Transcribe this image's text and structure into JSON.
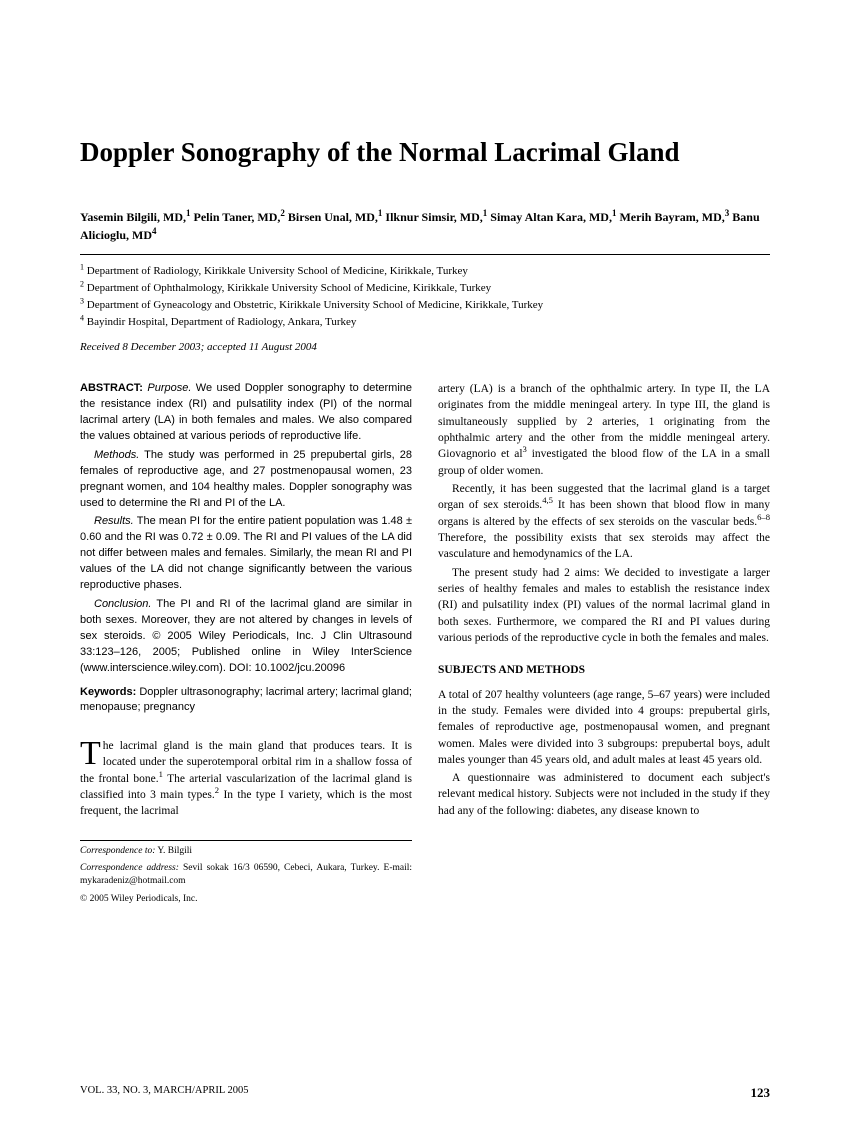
{
  "title": "Doppler Sonography of the Normal Lacrimal Gland",
  "authors_html": "Yasemin Bilgili, MD,<sup>1</sup> Pelin Taner, MD,<sup>2</sup> Birsen Unal, MD,<sup>1</sup> Ilknur Simsir, MD,<sup>1</sup> Simay Altan Kara, MD,<sup>1</sup> Merih Bayram, MD,<sup>3</sup> Banu Alicioglu, MD<sup>4</sup>",
  "affiliations": [
    "<sup>1</sup> Department of Radiology, Kirikkale University School of Medicine, Kirikkale, Turkey",
    "<sup>2</sup> Department of Ophthalmology, Kirikkale University School of Medicine, Kirikkale, Turkey",
    "<sup>3</sup> Department of Gyneacology and Obstetric, Kirikkale University School of Medicine, Kirikkale, Turkey",
    "<sup>4</sup> Bayindir Hospital, Department of Radiology, Ankara, Turkey"
  ],
  "received": "Received 8 December 2003; accepted 11 August 2004",
  "abstract": {
    "label": "ABSTRACT:",
    "purpose_label": "Purpose.",
    "purpose": "We used Doppler sonography to determine the resistance index (RI) and pulsatility index (PI) of the normal lacrimal artery (LA) in both females and males. We also compared the values obtained at various periods of reproductive life.",
    "methods_label": "Methods.",
    "methods": "The study was performed in 25 prepubertal girls, 28 females of reproductive age, and 27 postmenopausal women, 23 pregnant women, and 104 healthy males. Doppler sonography was used to determine the RI and PI of the LA.",
    "results_label": "Results.",
    "results": "The mean PI for the entire patient population was 1.48 ± 0.60 and the RI was 0.72 ± 0.09. The RI and PI values of the LA did not differ between males and females. Similarly, the mean RI and PI values of the LA did not change significantly between the various reproductive phases.",
    "conclusion_label": "Conclusion.",
    "conclusion": "The PI and RI of the lacrimal gland are similar in both sexes. Moreover, they are not altered by changes in levels of sex steroids. © 2005 Wiley Periodicals, Inc. J Clin Ultrasound 33:123–126, 2005; Published online in Wiley InterScience (www.interscience.wiley.com). DOI: 10.1002/jcu.20096"
  },
  "keywords_label": "Keywords:",
  "keywords": "Doppler ultrasonography; lacrimal artery; lacrimal gland; menopause; pregnancy",
  "intro_p1": "The lacrimal gland is the main gland that produces tears. It is located under the superotemporal orbital rim in a shallow fossa of the frontal bone.<sup>1</sup> The arterial vascularization of the lacrimal gland is classified into 3 main types.<sup>2</sup> In the type I variety, which is the most frequent, the lacrimal",
  "col2_p1": "artery (LA) is a branch of the ophthalmic artery. In type II, the LA originates from the middle meningeal artery. In type III, the gland is simultaneously supplied by 2 arteries, 1 originating from the ophthalmic artery and the other from the middle meningeal artery. Giovagnorio et al<sup>3</sup> investigated the blood flow of the LA in a small group of older women.",
  "col2_p2": "Recently, it has been suggested that the lacrimal gland is a target organ of sex steroids.<sup>4,5</sup> It has been shown that blood flow in many organs is altered by the effects of sex steroids on the vascular beds.<sup>6–8</sup> Therefore, the possibility exists that sex steroids may affect the vasculature and hemodynamics of the LA.",
  "col2_p3": "The present study had 2 aims: We decided to investigate a larger series of healthy females and males to establish the resistance index (RI) and pulsatility index (PI) values of the normal lacrimal gland in both sexes. Furthermore, we compared the RI and PI values during various periods of the reproductive cycle in both the females and males.",
  "section_head": "SUBJECTS AND METHODS",
  "methods_p1": "A total of 207 healthy volunteers (age range, 5–67 years) were included in the study. Females were divided into 4 groups: prepubertal girls, females of reproductive age, postmenopausal women, and pregnant women. Males were divided into 3 subgroups: prepubertal boys, adult males younger than 45 years old, and adult males at least 45 years old.",
  "methods_p2": "A questionnaire was administered to document each subject's relevant medical history. Subjects were not included in the study if they had any of the following: diabetes, any disease known to",
  "footnotes": {
    "corr_to_label": "Correspondence to:",
    "corr_to": "Y. Bilgili",
    "corr_addr_label": "Correspondence address:",
    "corr_addr": "Sevil sokak 16/3 06590, Cebeci, Aukara, Turkey. E-mail: mykaradeniz@hotmail.com",
    "copyright": "© 2005 Wiley Periodicals, Inc."
  },
  "footer": {
    "left": "VOL. 33, NO. 3, MARCH/APRIL 2005",
    "page": "123"
  }
}
